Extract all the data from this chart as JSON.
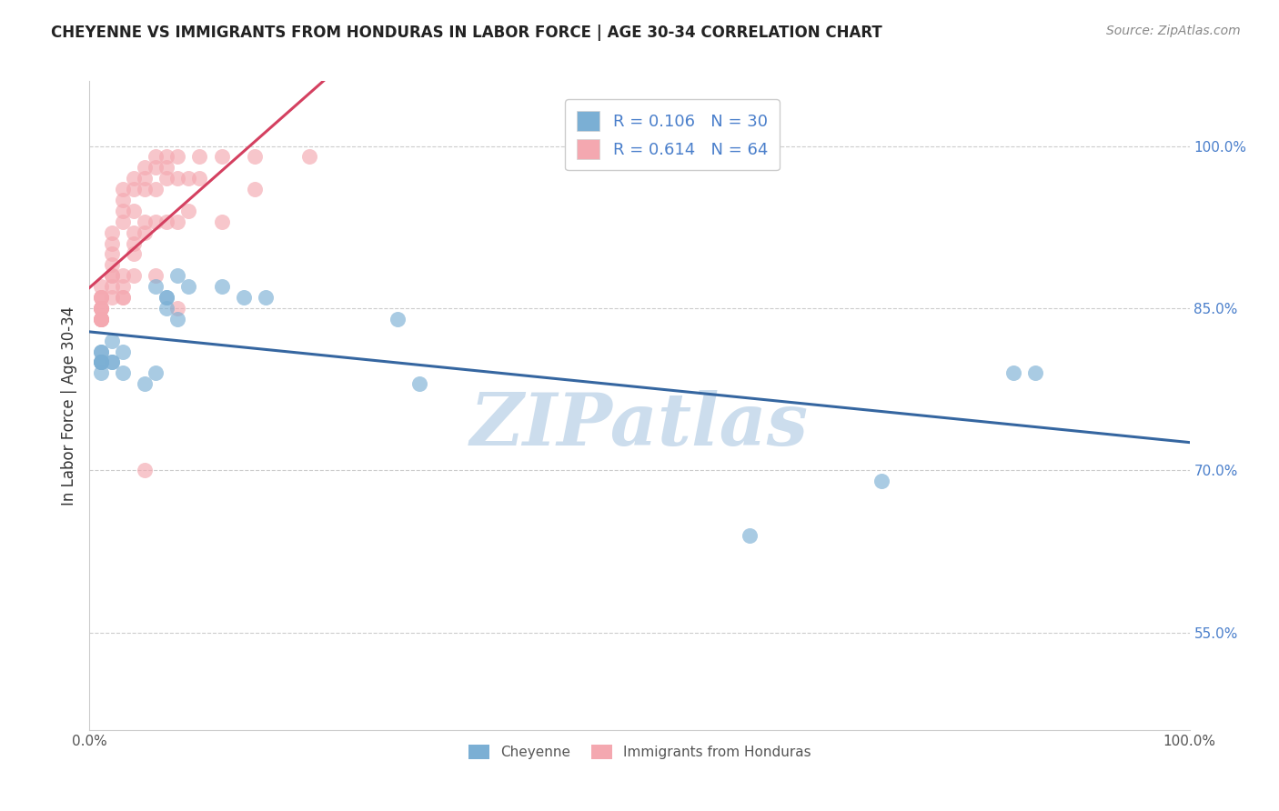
{
  "title": "CHEYENNE VS IMMIGRANTS FROM HONDURAS IN LABOR FORCE | AGE 30-34 CORRELATION CHART",
  "source": "Source: ZipAtlas.com",
  "ylabel": "In Labor Force | Age 30-34",
  "xlim": [
    0.0,
    1.0
  ],
  "ylim": [
    0.46,
    1.06
  ],
  "yticks": [
    0.55,
    0.7,
    0.85,
    1.0
  ],
  "ytick_labels": [
    "55.0%",
    "70.0%",
    "85.0%",
    "100.0%"
  ],
  "cheyenne_R": 0.106,
  "cheyenne_N": 30,
  "honduras_R": 0.614,
  "honduras_N": 64,
  "blue_color": "#7bafd4",
  "pink_color": "#f4a8b0",
  "blue_line_color": "#3566a0",
  "pink_line_color": "#d44060",
  "watermark_color": "#ccdded",
  "background_color": "#ffffff",
  "grid_color": "#cccccc",
  "cheyenne_x": [
    0.02,
    0.06,
    0.08,
    0.01,
    0.01,
    0.01,
    0.01,
    0.01,
    0.01,
    0.01,
    0.02,
    0.02,
    0.03,
    0.07,
    0.07,
    0.09,
    0.12,
    0.14,
    0.16,
    0.05,
    0.06,
    0.07,
    0.08,
    0.28,
    0.3,
    0.6,
    0.72,
    0.84,
    0.86,
    0.03
  ],
  "cheyenne_y": [
    0.82,
    0.87,
    0.88,
    0.8,
    0.79,
    0.8,
    0.8,
    0.81,
    0.81,
    0.8,
    0.8,
    0.8,
    0.81,
    0.86,
    0.85,
    0.87,
    0.87,
    0.86,
    0.86,
    0.78,
    0.79,
    0.86,
    0.84,
    0.84,
    0.78,
    0.64,
    0.69,
    0.79,
    0.79,
    0.79
  ],
  "honduras_x": [
    0.01,
    0.01,
    0.01,
    0.01,
    0.01,
    0.01,
    0.01,
    0.01,
    0.01,
    0.01,
    0.01,
    0.01,
    0.01,
    0.02,
    0.02,
    0.02,
    0.02,
    0.02,
    0.02,
    0.02,
    0.02,
    0.03,
    0.03,
    0.03,
    0.03,
    0.03,
    0.03,
    0.03,
    0.03,
    0.04,
    0.04,
    0.04,
    0.04,
    0.04,
    0.04,
    0.04,
    0.05,
    0.05,
    0.05,
    0.05,
    0.05,
    0.05,
    0.06,
    0.06,
    0.06,
    0.06,
    0.06,
    0.07,
    0.07,
    0.07,
    0.07,
    0.08,
    0.08,
    0.08,
    0.08,
    0.09,
    0.09,
    0.1,
    0.1,
    0.12,
    0.12,
    0.15,
    0.15,
    0.2
  ],
  "honduras_y": [
    0.87,
    0.86,
    0.86,
    0.86,
    0.85,
    0.85,
    0.85,
    0.85,
    0.84,
    0.84,
    0.84,
    0.84,
    0.84,
    0.92,
    0.91,
    0.9,
    0.89,
    0.88,
    0.88,
    0.87,
    0.86,
    0.96,
    0.95,
    0.94,
    0.93,
    0.88,
    0.87,
    0.86,
    0.86,
    0.97,
    0.96,
    0.94,
    0.92,
    0.91,
    0.9,
    0.88,
    0.98,
    0.97,
    0.96,
    0.93,
    0.92,
    0.7,
    0.99,
    0.98,
    0.96,
    0.93,
    0.88,
    0.99,
    0.98,
    0.97,
    0.93,
    0.99,
    0.97,
    0.93,
    0.85,
    0.97,
    0.94,
    0.99,
    0.97,
    0.99,
    0.93,
    0.99,
    0.96,
    0.99
  ]
}
